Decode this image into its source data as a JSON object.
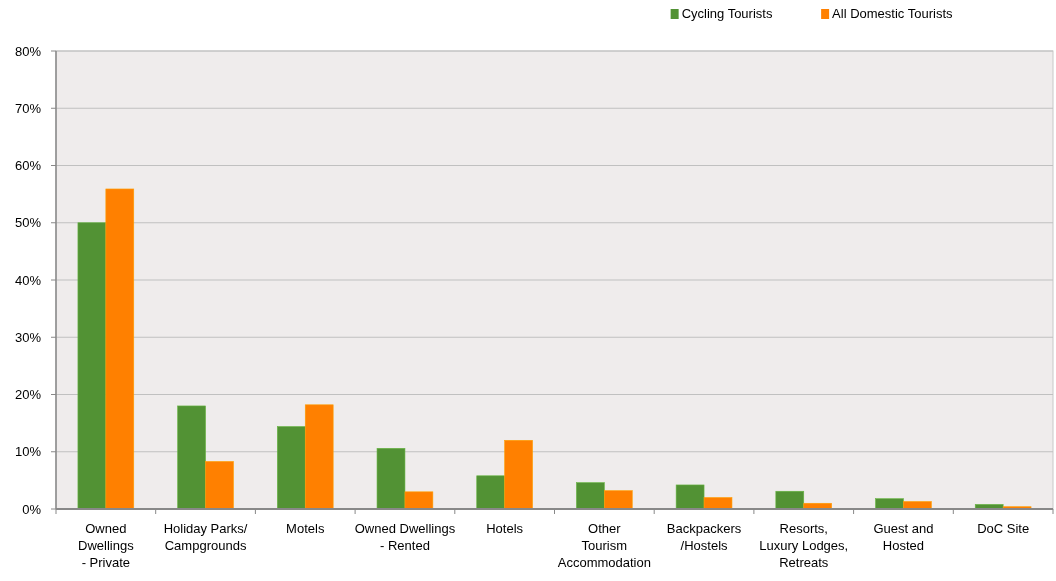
{
  "chart_data": {
    "type": "bar",
    "categories": [
      "Owned\nDwellings\n- Private",
      "Holiday Parks/\nCampgrounds",
      "Motels",
      "Owned Dwellings\n- Rented",
      "Hotels",
      "Other\nTourism\nAccommodation",
      "Backpackers\n/Hostels",
      "Resorts,\nLuxury Lodges,\nRetreats",
      "Guest and\nHosted",
      "DoC Site"
    ],
    "series": [
      {
        "name": "Cycling Tourists",
        "color": "#529234",
        "values": [
          50.0,
          18.0,
          14.4,
          10.6,
          5.8,
          4.6,
          4.2,
          3.1,
          1.8,
          0.8
        ]
      },
      {
        "name": "All Domestic Tourists",
        "color": "#ff8000",
        "values": [
          55.9,
          8.3,
          18.2,
          3.0,
          12.0,
          3.2,
          2.0,
          1.0,
          1.3,
          0.4
        ]
      }
    ],
    "ylim": [
      0,
      80
    ],
    "yticks": [
      {
        "value": 0,
        "label": "0%"
      },
      {
        "value": 10,
        "label": "10%"
      },
      {
        "value": 20,
        "label": "20%"
      },
      {
        "value": 30,
        "label": "30%"
      },
      {
        "value": 40,
        "label": "40%"
      },
      {
        "value": 50,
        "label": "50%"
      },
      {
        "value": 60,
        "label": "60%"
      },
      {
        "value": 70,
        "label": "70%"
      },
      {
        "value": 80,
        "label": "80%"
      }
    ],
    "grid": "y",
    "legend": "top right"
  }
}
